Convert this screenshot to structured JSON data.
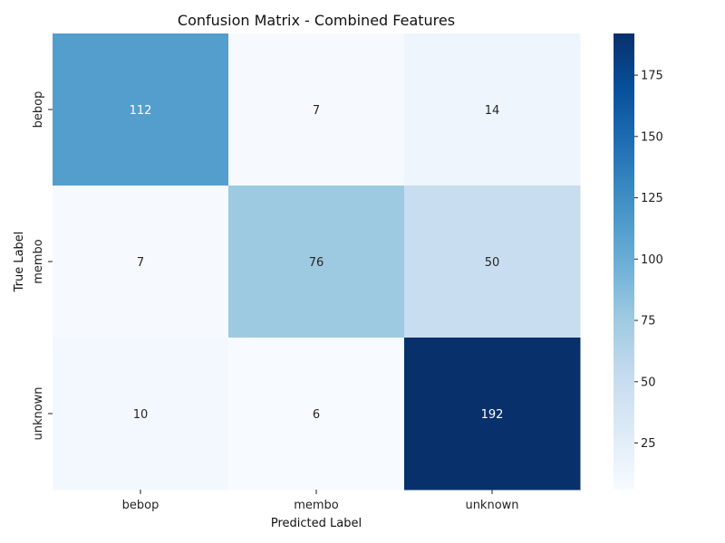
{
  "chart_data": {
    "type": "heatmap",
    "title": "Confusion Matrix - Combined Features",
    "xlabel": "Predicted Label",
    "ylabel": "True Label",
    "x_categories": [
      "bebop",
      "membo",
      "unknown"
    ],
    "y_categories": [
      "bebop",
      "membo",
      "unknown"
    ],
    "values": [
      [
        112,
        7,
        14
      ],
      [
        7,
        76,
        50
      ],
      [
        10,
        6,
        192
      ]
    ],
    "colormap": "Blues",
    "color_range": [
      6,
      192
    ],
    "colorbar_ticks": [
      25,
      50,
      75,
      100,
      125,
      150,
      175
    ],
    "colorbar_tick_labels": [
      "25",
      "50",
      "75",
      "100",
      "125",
      "150",
      "175"
    ]
  }
}
